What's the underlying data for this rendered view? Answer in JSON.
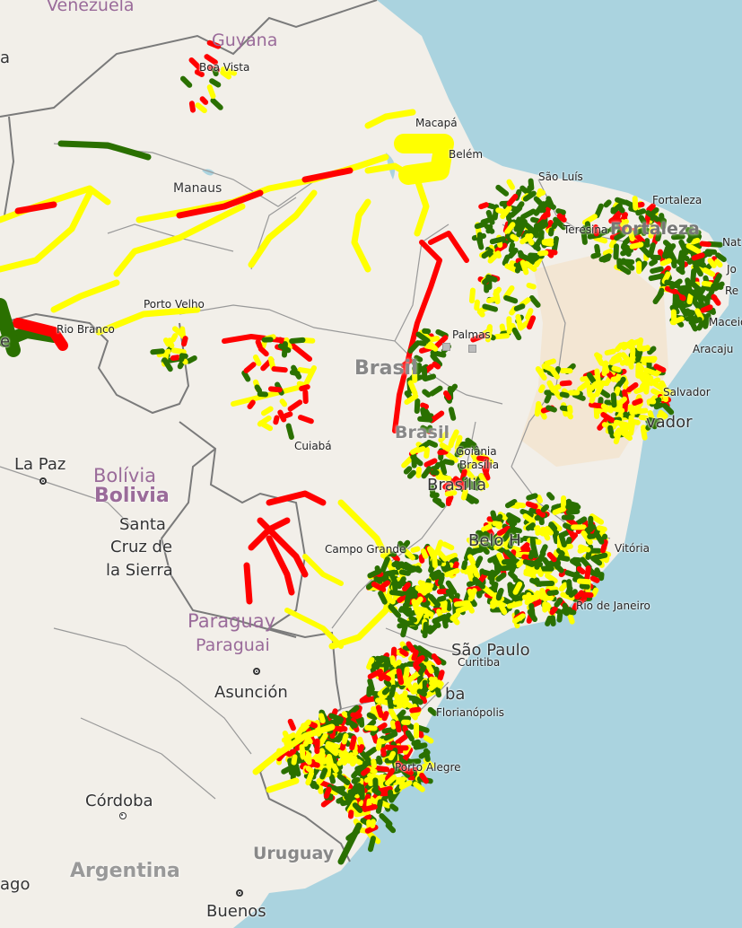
{
  "map": {
    "countries": {
      "venezuela": "Venezuela",
      "guyana": "Guyana",
      "bolivia_1": "Bolívia",
      "bolivia_2": "Bolivia",
      "paraguay_1": "Paraguay",
      "paraguay_2": "Paraguai",
      "argentina": "Argentina",
      "uruguay": "Uruguay",
      "brasil_1": "Brasil",
      "brasil_2": "Brasil"
    },
    "cities": {
      "boa_vista": "Boa Vista",
      "macapa": "Macapá",
      "belem": "Belém",
      "sao_luis": "São Luís",
      "fortaleza": "Fortaleza",
      "fortaleza_ghost": "Fortaleza",
      "teresina": "Teresina",
      "natal": "Nat",
      "joao_pessoa": "Jo",
      "recife": "Re",
      "maceio": "Maceió",
      "aracaju": "Aracaju",
      "salvador_sm": "Salvador",
      "salvador_lg": "vador",
      "manaus": "Manaus",
      "porto_velho": "Porto Velho",
      "rio_branco": "Rio Branco",
      "palmas": "Palmas",
      "cuiaba": "Cuiabá",
      "goiania": "Goiânia",
      "brasilia_sm": "Brasília",
      "brasilia_lg": "Brasília",
      "belo_horizonte": "Belo H",
      "vitoria": "Vitória",
      "rio": "Rio de Janeiro",
      "campo_grande": "Campo Grande",
      "sao_paulo": "São Paulo",
      "curitiba": "Curitiba",
      "curitiba_ghost": "ba",
      "florianopolis": "Florianópolis",
      "porto_alegre": "Porto Alegre",
      "la_paz": "La Paz",
      "santa_cruz_1": "Santa",
      "santa_cruz_2": "Cruz de",
      "santa_cruz_3": "la Sierra",
      "asuncion": "Asunción",
      "cordoba": "Córdoba",
      "buenos_aires": "Buenos",
      "santiago": "ago",
      "ghost_a": "a",
      "ghost_e": "e"
    },
    "colors": {
      "ocean": "#aad3df",
      "land": "#f2efe9",
      "semiarid": "#f3e6d3",
      "border": "#7a7a7a",
      "road_good": "#2a7000",
      "road_fair": "#ffff00",
      "road_poor": "#ff0000"
    }
  }
}
